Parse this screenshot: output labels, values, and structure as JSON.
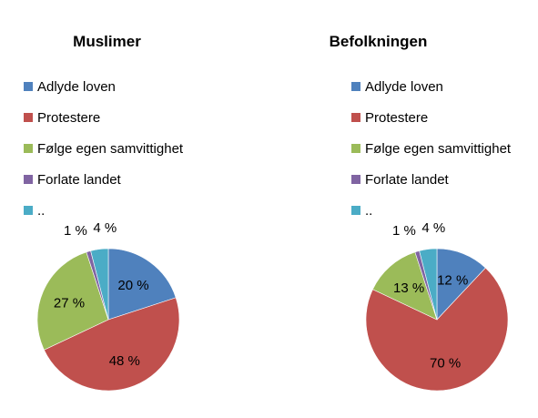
{
  "chart_data": [
    {
      "type": "pie",
      "title": "Muslimer",
      "categories": [
        "Adlyde loven",
        "Protestere",
        "Følge egen samvittighet",
        "Forlate landet",
        ".."
      ],
      "values": [
        20,
        48,
        27,
        1,
        4
      ],
      "labels": [
        "20 %",
        "48 %",
        "27 %",
        "1 %",
        "4 %"
      ],
      "colors": [
        "#4f81bd",
        "#c0504d",
        "#9bbb59",
        "#8064a2",
        "#4bacc6"
      ],
      "legend": "top"
    },
    {
      "type": "pie",
      "title": "Befolkningen",
      "categories": [
        "Adlyde loven",
        "Protestere",
        "Følge egen samvittighet",
        "Forlate landet",
        ".."
      ],
      "values": [
        12,
        70,
        13,
        1,
        4
      ],
      "labels": [
        "12 %",
        "70 %",
        "13 %",
        "1 %",
        "4 %"
      ],
      "colors": [
        "#4f81bd",
        "#c0504d",
        "#9bbb59",
        "#8064a2",
        "#4bacc6"
      ],
      "legend": "top"
    }
  ]
}
